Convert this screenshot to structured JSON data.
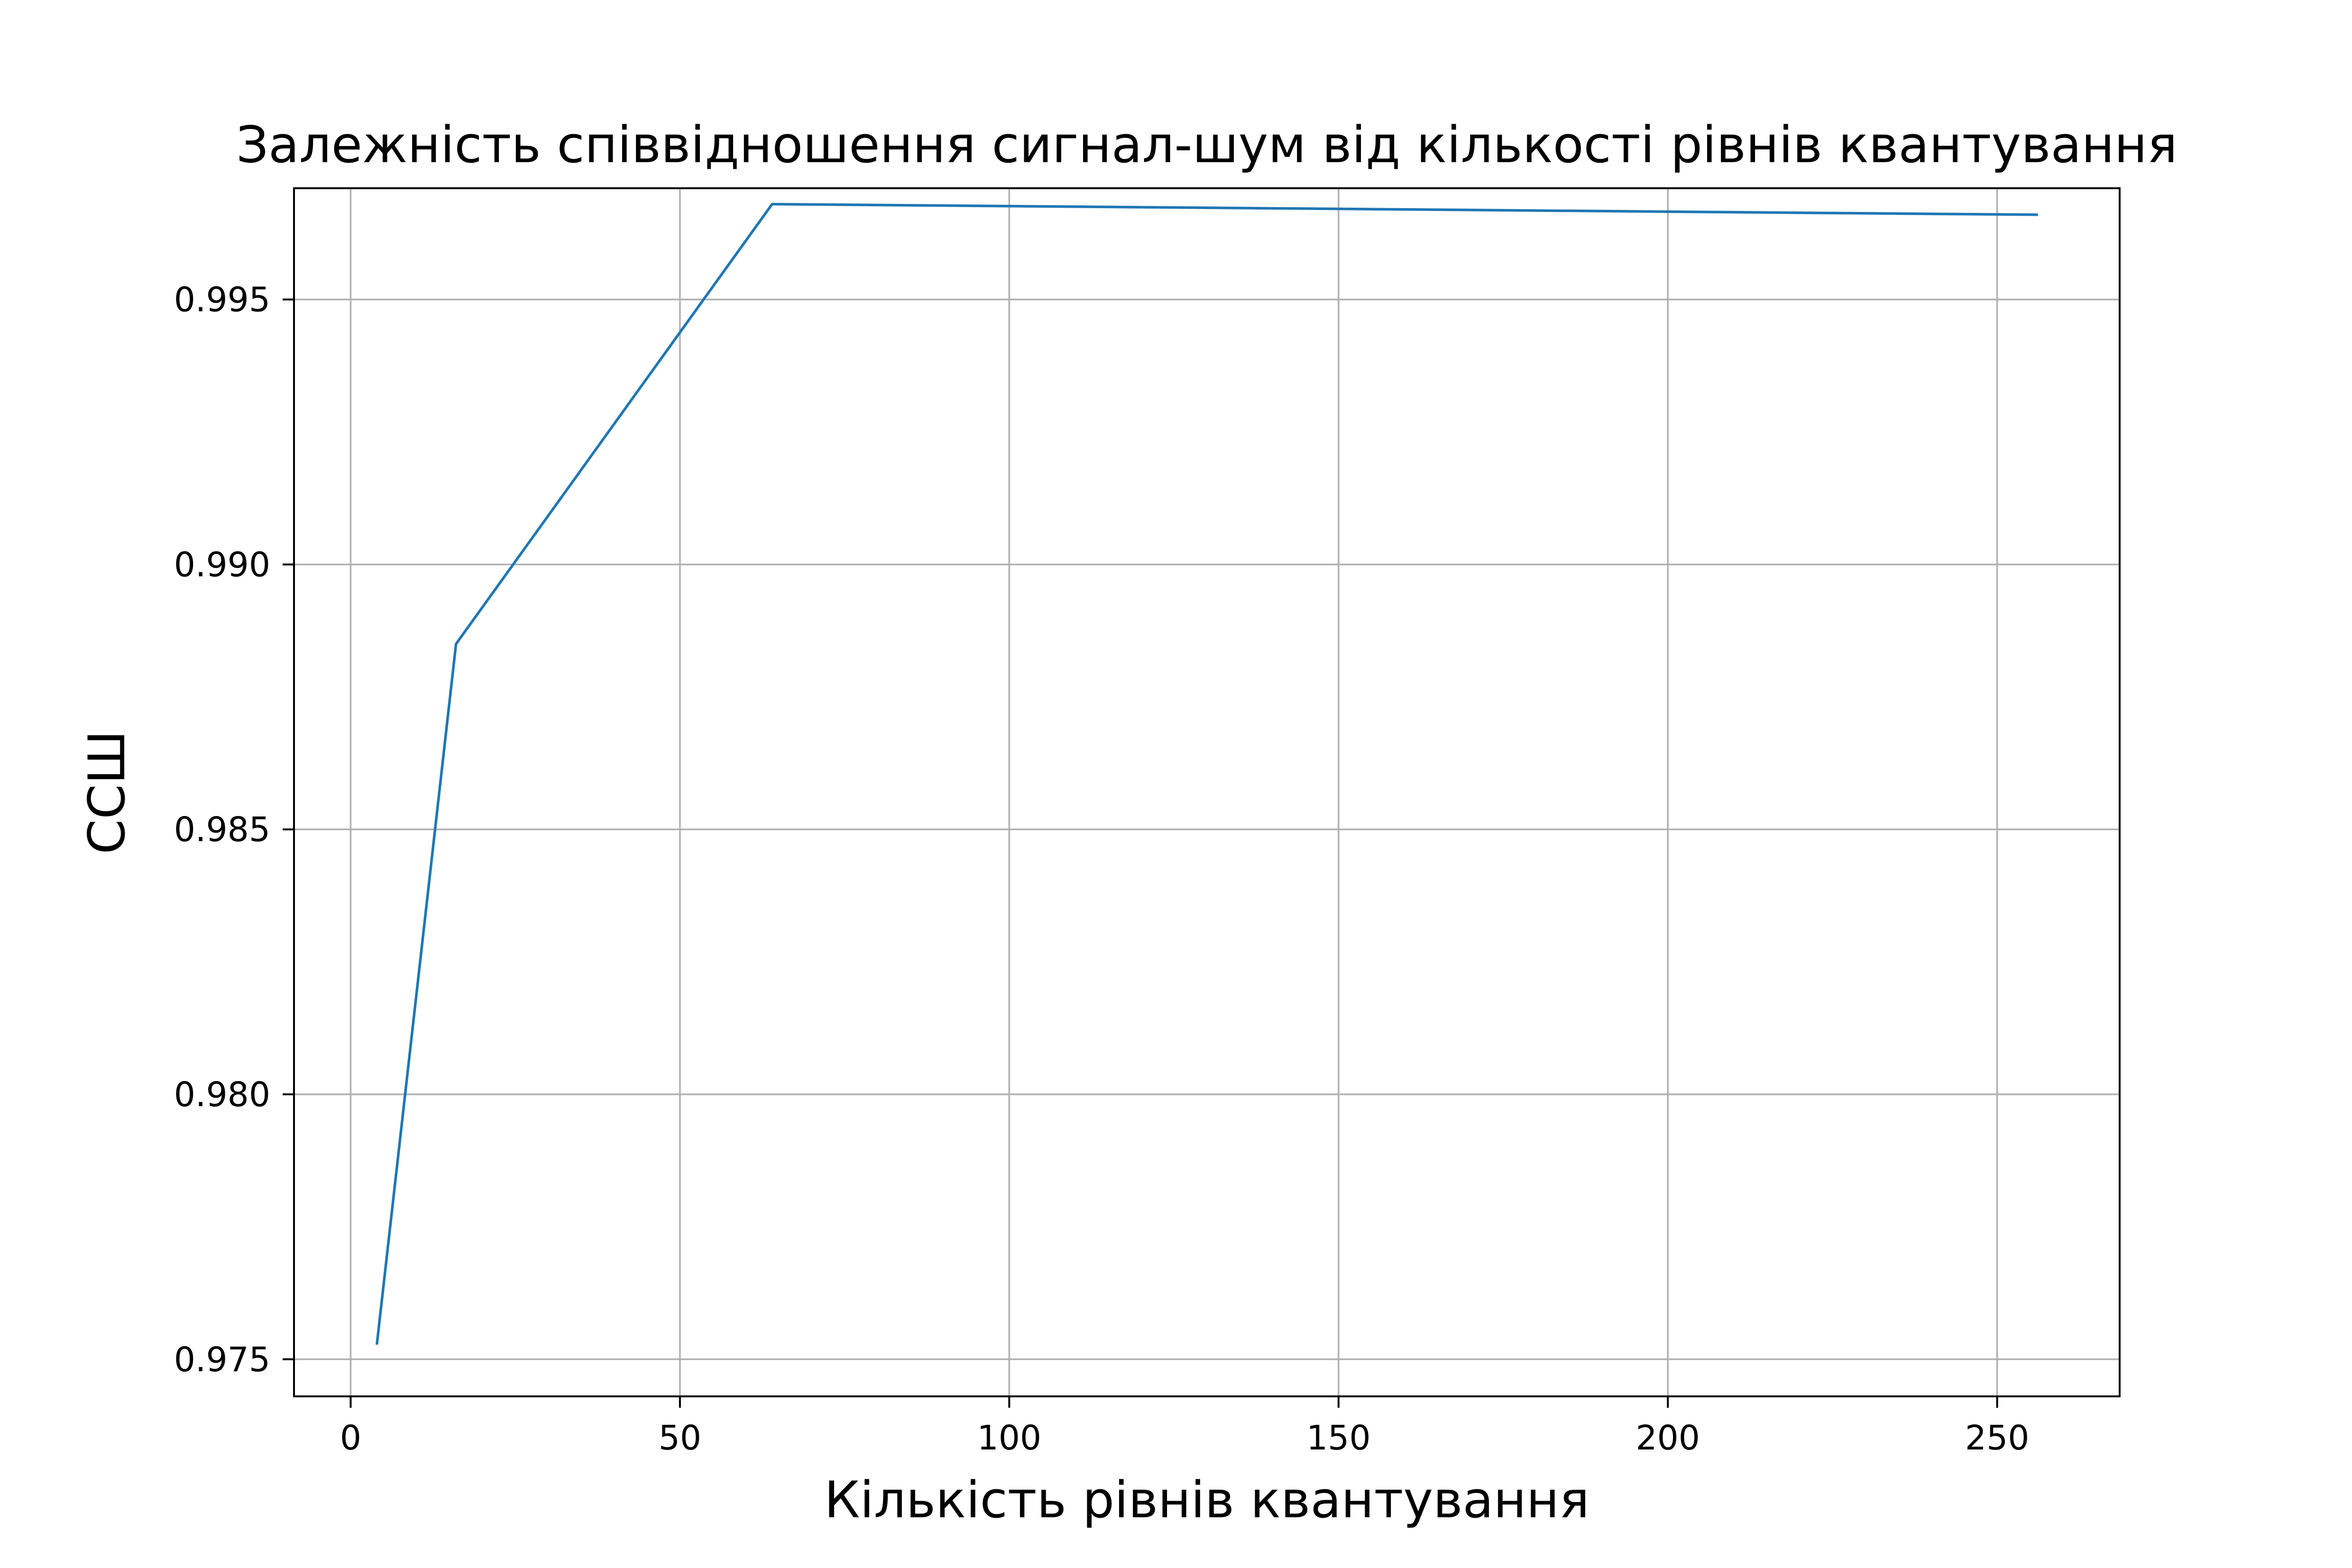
{
  "chart_data": {
    "type": "line",
    "title": "Залежність співвідношення сигнал-шум від кількості рівнів квантування",
    "xlabel": "Кількість рівнів квантування",
    "ylabel": "ССШ",
    "x": [
      4,
      16,
      64,
      256
    ],
    "series": [
      {
        "values": [
          0.9753,
          0.9885,
          0.9968,
          0.9966
        ],
        "color": "#1f77b4"
      }
    ],
    "xlim": [
      -8.6,
      268.6
    ],
    "ylim": [
      0.9743,
      0.9971
    ],
    "xticks": [
      0,
      50,
      100,
      150,
      200,
      250
    ],
    "xtick_labels": [
      "0",
      "50",
      "100",
      "150",
      "200",
      "250"
    ],
    "yticks": [
      0.975,
      0.98,
      0.985,
      0.99,
      0.995
    ],
    "ytick_labels": [
      "0.975",
      "0.980",
      "0.985",
      "0.990",
      "0.995"
    ],
    "grid": true,
    "colors": {
      "grid": "#b0b0b0",
      "frame": "#000000",
      "line": "#1f77b4"
    }
  }
}
